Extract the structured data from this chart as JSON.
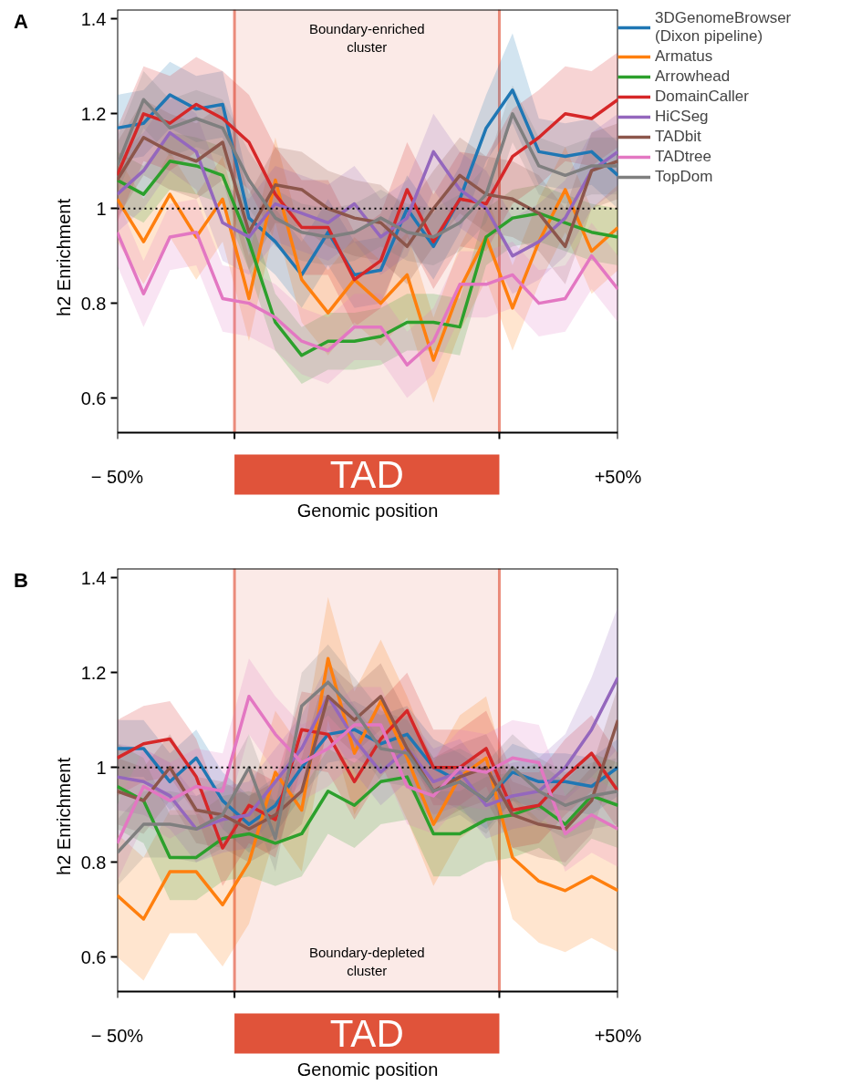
{
  "chart_data": [
    {
      "type": "line",
      "title": "A",
      "xlabel": "Genomic position",
      "ylabel": "h2 Enrichment",
      "legend": "right",
      "grid": false,
      "categories": [
        "− 50%",
        null,
        null,
        null,
        null,
        null,
        null,
        null,
        null,
        null,
        null,
        null,
        null,
        null,
        null,
        null,
        null,
        null,
        null,
        "+50%"
      ],
      "ylim": [
        0.527,
        1.42
      ],
      "yticks": [
        0.6,
        0.8,
        1,
        1.2,
        1.4
      ],
      "ref_lines": [
        {
          "axis": "y",
          "value": 1,
          "line_style": "dotted",
          "color": "#000000"
        }
      ],
      "annotations": [
        "Boundary-enriched\ncluster",
        "TAD"
      ],
      "series": [
        {
          "name": "3DGenomeBrowser\n(Dixon pipeline)",
          "color": "#1f77b4",
          "values": [
            1.17,
            1.18,
            1.24,
            1.21,
            1.22,
            0.98,
            0.93,
            0.86,
            0.95,
            0.86,
            0.87,
            1.0,
            0.92,
            1.02,
            1.17,
            1.25,
            1.12,
            1.11,
            1.12,
            1.07
          ],
          "lower": [
            1.1,
            1.11,
            1.17,
            1.14,
            1.15,
            0.91,
            0.86,
            0.79,
            0.88,
            0.79,
            0.8,
            0.93,
            0.85,
            0.95,
            1.1,
            1.18,
            1.05,
            1.04,
            1.05,
            1.0
          ],
          "upper": [
            1.24,
            1.25,
            1.31,
            1.28,
            1.29,
            1.05,
            1.0,
            0.93,
            1.02,
            0.93,
            0.94,
            1.07,
            0.99,
            1.09,
            1.24,
            1.37,
            1.19,
            1.18,
            1.19,
            1.14
          ]
        },
        {
          "name": "Armatus",
          "color": "#ff7f0e",
          "values": [
            1.02,
            0.93,
            1.03,
            0.94,
            1.02,
            0.81,
            1.06,
            0.85,
            0.78,
            0.85,
            0.8,
            0.86,
            0.68,
            0.83,
            0.94,
            0.79,
            0.93,
            1.04,
            0.91,
            0.96
          ],
          "lower": [
            0.93,
            0.84,
            0.94,
            0.85,
            0.93,
            0.72,
            0.97,
            0.76,
            0.69,
            0.76,
            0.71,
            0.77,
            0.59,
            0.74,
            0.85,
            0.7,
            0.84,
            0.95,
            0.82,
            0.87
          ],
          "upper": [
            1.11,
            1.02,
            1.12,
            1.03,
            1.11,
            0.9,
            1.15,
            0.94,
            0.87,
            0.94,
            0.89,
            0.95,
            0.77,
            0.92,
            1.03,
            0.88,
            1.02,
            1.13,
            1.0,
            1.05
          ]
        },
        {
          "name": "Arrowhead",
          "color": "#2ca02c",
          "values": [
            1.06,
            1.03,
            1.1,
            1.09,
            1.07,
            0.93,
            0.76,
            0.69,
            0.72,
            0.72,
            0.73,
            0.76,
            0.76,
            0.75,
            0.94,
            0.98,
            0.99,
            0.97,
            0.95,
            0.94
          ],
          "lower": [
            1.0,
            0.97,
            1.04,
            1.03,
            1.01,
            0.87,
            0.7,
            0.63,
            0.66,
            0.66,
            0.67,
            0.7,
            0.7,
            0.69,
            0.88,
            0.92,
            0.93,
            0.91,
            0.89,
            0.88
          ],
          "upper": [
            1.12,
            1.09,
            1.16,
            1.15,
            1.13,
            0.99,
            0.82,
            0.75,
            0.78,
            0.78,
            0.79,
            0.82,
            0.82,
            0.81,
            1.0,
            1.04,
            1.05,
            1.03,
            1.01,
            1.0
          ]
        },
        {
          "name": "DomainCaller",
          "color": "#d62728",
          "values": [
            1.07,
            1.2,
            1.18,
            1.22,
            1.19,
            1.14,
            1.03,
            0.96,
            0.96,
            0.85,
            0.89,
            1.04,
            0.93,
            1.02,
            1.01,
            1.11,
            1.15,
            1.2,
            1.19,
            1.23
          ],
          "lower": [
            0.97,
            1.1,
            1.08,
            1.12,
            1.09,
            1.04,
            0.93,
            0.86,
            0.86,
            0.75,
            0.79,
            0.94,
            0.83,
            0.92,
            0.91,
            1.01,
            1.05,
            1.1,
            1.09,
            1.13
          ],
          "upper": [
            1.17,
            1.3,
            1.28,
            1.32,
            1.29,
            1.24,
            1.13,
            1.06,
            1.06,
            0.95,
            0.99,
            1.14,
            1.03,
            1.12,
            1.11,
            1.21,
            1.25,
            1.3,
            1.29,
            1.33
          ]
        },
        {
          "name": "HiCSeg",
          "color": "#9467bd",
          "values": [
            1.03,
            1.08,
            1.16,
            1.12,
            0.97,
            0.94,
            1.01,
            0.99,
            0.97,
            1.01,
            0.94,
            0.98,
            1.12,
            1.04,
            1.0,
            0.9,
            0.93,
            0.98,
            1.08,
            1.12
          ],
          "lower": [
            0.95,
            1.0,
            1.08,
            1.04,
            0.89,
            0.86,
            0.93,
            0.91,
            0.89,
            0.93,
            0.86,
            0.9,
            1.04,
            0.96,
            0.92,
            0.82,
            0.85,
            0.9,
            1.0,
            1.04
          ],
          "upper": [
            1.11,
            1.16,
            1.24,
            1.2,
            1.05,
            1.02,
            1.09,
            1.07,
            1.05,
            1.09,
            1.02,
            1.06,
            1.2,
            1.12,
            1.08,
            0.98,
            1.01,
            1.06,
            1.16,
            1.2
          ]
        },
        {
          "name": "TADbit",
          "color": "#8c564b",
          "values": [
            1.06,
            1.15,
            1.12,
            1.1,
            1.14,
            0.95,
            1.05,
            1.04,
            1.0,
            0.98,
            0.97,
            0.92,
            1.0,
            1.07,
            1.03,
            1.02,
            0.99,
            0.92,
            1.08,
            1.1
          ],
          "lower": [
            0.98,
            1.07,
            1.04,
            1.02,
            1.06,
            0.87,
            0.97,
            0.96,
            0.92,
            0.9,
            0.89,
            0.84,
            0.92,
            0.99,
            0.95,
            0.94,
            0.91,
            0.84,
            1.0,
            1.02
          ],
          "upper": [
            1.14,
            1.23,
            1.2,
            1.18,
            1.22,
            1.03,
            1.13,
            1.12,
            1.08,
            1.06,
            1.05,
            1.0,
            1.08,
            1.15,
            1.11,
            1.1,
            1.07,
            1.0,
            1.16,
            1.18
          ]
        },
        {
          "name": "TADtree",
          "color": "#e377c2",
          "values": [
            0.95,
            0.82,
            0.94,
            0.95,
            0.81,
            0.8,
            0.77,
            0.72,
            0.7,
            0.75,
            0.75,
            0.67,
            0.72,
            0.84,
            0.84,
            0.86,
            0.8,
            0.81,
            0.9,
            0.83
          ],
          "lower": [
            0.88,
            0.75,
            0.87,
            0.88,
            0.74,
            0.73,
            0.7,
            0.65,
            0.63,
            0.68,
            0.68,
            0.6,
            0.65,
            0.77,
            0.77,
            0.79,
            0.73,
            0.74,
            0.83,
            0.76
          ],
          "upper": [
            1.02,
            0.89,
            1.01,
            1.02,
            0.88,
            0.87,
            0.84,
            0.79,
            0.77,
            0.82,
            0.82,
            0.74,
            0.79,
            0.91,
            0.91,
            0.93,
            0.87,
            0.88,
            0.97,
            0.9
          ]
        },
        {
          "name": "TopDom",
          "color": "#7f7f7f",
          "values": [
            1.09,
            1.23,
            1.17,
            1.19,
            1.17,
            1.06,
            0.98,
            0.95,
            0.94,
            0.95,
            0.98,
            0.95,
            0.94,
            0.97,
            1.03,
            1.2,
            1.09,
            1.07,
            1.09,
            1.09
          ],
          "lower": [
            1.03,
            1.17,
            1.11,
            1.13,
            1.11,
            1.0,
            0.92,
            0.89,
            0.88,
            0.89,
            0.92,
            0.89,
            0.88,
            0.91,
            0.97,
            1.14,
            1.03,
            1.01,
            1.03,
            1.03
          ],
          "upper": [
            1.15,
            1.29,
            1.23,
            1.25,
            1.23,
            1.12,
            1.04,
            1.01,
            1.0,
            1.01,
            1.04,
            1.01,
            1.0,
            1.03,
            1.09,
            1.26,
            1.15,
            1.13,
            1.15,
            1.15
          ]
        }
      ]
    },
    {
      "type": "line",
      "title": "B",
      "xlabel": "Genomic position",
      "ylabel": "h2 Enrichment",
      "grid": false,
      "categories": [
        "− 50%",
        null,
        null,
        null,
        null,
        null,
        null,
        null,
        null,
        null,
        null,
        null,
        null,
        null,
        null,
        null,
        null,
        null,
        null,
        "+50%"
      ],
      "ylim": [
        0.527,
        1.42
      ],
      "yticks": [
        0.6,
        0.8,
        1,
        1.2,
        1.4
      ],
      "ref_lines": [
        {
          "axis": "y",
          "value": 1,
          "line_style": "dotted",
          "color": "#000000"
        }
      ],
      "annotations": [
        "Boundary-depleted\ncluster",
        "TAD"
      ],
      "series": [
        {
          "color": "#1f77b4",
          "values": [
            1.04,
            1.04,
            0.97,
            1.02,
            0.93,
            0.88,
            0.92,
            1.0,
            1.07,
            1.08,
            1.05,
            1.07,
            1.0,
            0.97,
            0.93,
            0.99,
            0.97,
            0.97,
            0.96,
            1.0
          ],
          "lower": [
            0.98,
            0.98,
            0.91,
            0.96,
            0.87,
            0.82,
            0.86,
            0.94,
            1.01,
            1.02,
            0.99,
            1.01,
            0.94,
            0.91,
            0.87,
            0.93,
            0.91,
            0.91,
            0.9,
            0.94
          ],
          "upper": [
            1.1,
            1.1,
            1.03,
            1.08,
            0.99,
            0.94,
            0.98,
            1.06,
            1.13,
            1.14,
            1.11,
            1.13,
            1.06,
            1.03,
            0.99,
            1.05,
            1.03,
            1.03,
            1.02,
            1.06
          ]
        },
        {
          "color": "#ff7f0e",
          "values": [
            0.73,
            0.68,
            0.78,
            0.78,
            0.71,
            0.8,
            0.99,
            0.91,
            1.23,
            1.03,
            1.14,
            1.02,
            0.88,
            0.98,
            1.02,
            0.81,
            0.76,
            0.74,
            0.77,
            0.74
          ],
          "lower": [
            0.6,
            0.55,
            0.65,
            0.65,
            0.58,
            0.67,
            0.86,
            0.78,
            1.1,
            0.9,
            1.01,
            0.89,
            0.75,
            0.85,
            0.89,
            0.68,
            0.63,
            0.61,
            0.64,
            0.61
          ],
          "upper": [
            0.86,
            0.81,
            0.91,
            0.91,
            0.84,
            0.93,
            1.12,
            1.04,
            1.36,
            1.16,
            1.27,
            1.15,
            1.01,
            1.11,
            1.15,
            0.94,
            0.89,
            0.87,
            0.9,
            0.87
          ]
        },
        {
          "color": "#2ca02c",
          "values": [
            0.96,
            0.93,
            0.81,
            0.81,
            0.85,
            0.86,
            0.84,
            0.86,
            0.95,
            0.92,
            0.97,
            0.98,
            0.86,
            0.86,
            0.89,
            0.9,
            0.92,
            0.88,
            0.94,
            0.92
          ],
          "lower": [
            0.87,
            0.84,
            0.72,
            0.72,
            0.76,
            0.77,
            0.75,
            0.77,
            0.86,
            0.83,
            0.88,
            0.89,
            0.77,
            0.77,
            0.8,
            0.81,
            0.83,
            0.79,
            0.85,
            0.83
          ],
          "upper": [
            1.05,
            1.02,
            0.9,
            0.9,
            0.94,
            0.95,
            0.93,
            0.95,
            1.04,
            1.01,
            1.06,
            1.07,
            0.95,
            0.95,
            0.98,
            0.99,
            1.01,
            0.97,
            1.03,
            1.01
          ]
        },
        {
          "color": "#d62728",
          "values": [
            1.02,
            1.05,
            1.06,
            0.98,
            0.83,
            0.92,
            0.89,
            1.08,
            1.07,
            0.97,
            1.06,
            1.12,
            1.0,
            1.0,
            1.04,
            0.91,
            0.92,
            0.98,
            1.03,
            0.95
          ],
          "lower": [
            0.94,
            0.97,
            0.98,
            0.9,
            0.75,
            0.84,
            0.81,
            1.0,
            0.99,
            0.89,
            0.98,
            1.04,
            0.92,
            0.92,
            0.96,
            0.83,
            0.84,
            0.9,
            0.95,
            0.87
          ],
          "upper": [
            1.1,
            1.13,
            1.14,
            1.06,
            0.91,
            1.0,
            0.97,
            1.16,
            1.15,
            1.05,
            1.14,
            1.2,
            1.08,
            1.08,
            1.12,
            0.99,
            0.99,
            1.06,
            1.11,
            1.03
          ]
        },
        {
          "color": "#9467bd",
          "values": [
            0.98,
            0.97,
            0.94,
            0.87,
            0.89,
            0.9,
            0.97,
            1.04,
            1.15,
            1.06,
            0.99,
            1.04,
            0.97,
            0.99,
            0.92,
            0.94,
            0.95,
            1.0,
            1.08,
            1.19
          ],
          "lower": [
            0.91,
            0.9,
            0.87,
            0.8,
            0.82,
            0.83,
            0.9,
            0.97,
            1.08,
            0.99,
            0.92,
            0.97,
            0.9,
            0.92,
            0.85,
            0.87,
            0.88,
            0.93,
            0.98,
            1.04
          ],
          "upper": [
            1.05,
            1.04,
            1.01,
            0.94,
            0.96,
            0.97,
            1.04,
            1.11,
            1.22,
            1.13,
            1.06,
            1.11,
            1.04,
            1.06,
            0.99,
            1.01,
            1.02,
            1.07,
            1.19,
            1.34
          ]
        },
        {
          "color": "#8c564b",
          "values": [
            0.95,
            0.93,
            1.0,
            0.91,
            0.9,
            0.87,
            0.9,
            0.95,
            1.15,
            1.1,
            1.15,
            1.04,
            0.95,
            0.98,
            1.0,
            0.9,
            0.88,
            0.87,
            0.93,
            1.1
          ],
          "lower": [
            0.88,
            0.86,
            0.93,
            0.84,
            0.83,
            0.8,
            0.83,
            0.88,
            1.08,
            1.03,
            1.08,
            0.97,
            0.88,
            0.91,
            0.93,
            0.83,
            0.81,
            0.8,
            0.86,
            1.03
          ],
          "upper": [
            1.02,
            1.0,
            1.07,
            0.98,
            0.97,
            0.94,
            0.97,
            1.02,
            1.22,
            1.17,
            1.22,
            1.11,
            1.02,
            1.05,
            1.07,
            0.97,
            0.95,
            0.94,
            1.0,
            1.17
          ]
        },
        {
          "color": "#e377c2",
          "values": [
            0.84,
            0.96,
            0.93,
            0.96,
            0.95,
            1.15,
            1.07,
            1.01,
            1.04,
            1.09,
            1.09,
            0.96,
            0.94,
            1.0,
            0.99,
            1.02,
            1.01,
            0.86,
            0.9,
            0.87
          ],
          "lower": [
            0.76,
            0.88,
            0.85,
            0.88,
            0.87,
            1.07,
            0.99,
            0.93,
            0.96,
            1.01,
            1.01,
            0.88,
            0.86,
            0.92,
            0.91,
            0.94,
            0.93,
            0.78,
            0.82,
            0.79
          ],
          "upper": [
            0.92,
            1.04,
            1.01,
            1.04,
            1.03,
            1.23,
            1.15,
            1.09,
            1.12,
            1.17,
            1.17,
            1.04,
            1.02,
            1.08,
            1.07,
            1.1,
            1.09,
            0.94,
            0.98,
            0.95
          ]
        },
        {
          "color": "#7f7f7f",
          "values": [
            0.82,
            0.88,
            0.88,
            0.87,
            0.9,
            1.0,
            0.85,
            1.13,
            1.18,
            1.12,
            1.04,
            1.03,
            0.95,
            0.97,
            0.93,
            1.0,
            0.95,
            0.92,
            0.94,
            0.95
          ],
          "lower": [
            0.75,
            0.81,
            0.81,
            0.8,
            0.83,
            0.93,
            0.78,
            1.06,
            1.11,
            1.05,
            0.97,
            0.96,
            0.88,
            0.9,
            0.86,
            0.93,
            0.88,
            0.85,
            0.87,
            0.88
          ],
          "upper": [
            0.89,
            0.95,
            0.95,
            0.94,
            0.97,
            1.07,
            0.92,
            1.2,
            1.26,
            1.19,
            1.12,
            1.1,
            1.02,
            1.04,
            1.01,
            1.07,
            1.02,
            0.99,
            1.01,
            1.02
          ]
        }
      ]
    }
  ]
}
